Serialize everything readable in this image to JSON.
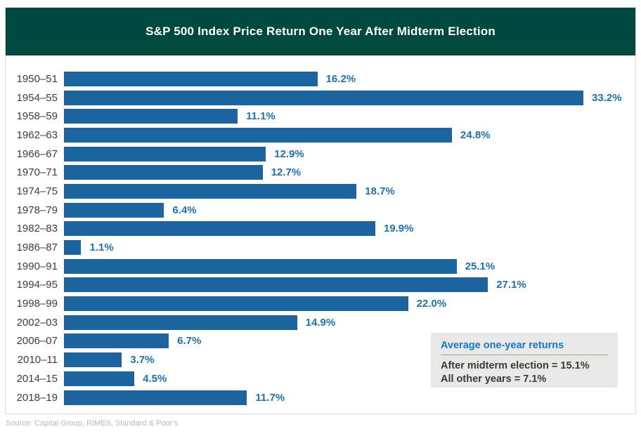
{
  "header": {
    "title": "S&P 500 Index Price Return One Year After Midterm Election"
  },
  "chart_data": {
    "type": "bar",
    "orientation": "horizontal",
    "title": "S&P 500 Index Price Return One Year After Midterm Election",
    "categories": [
      "1950–51",
      "1954–55",
      "1958–59",
      "1962–63",
      "1966–67",
      "1970–71",
      "1974–75",
      "1978–79",
      "1982–83",
      "1986–87",
      "1990–91",
      "1994–95",
      "1998–99",
      "2002–03",
      "2006–07",
      "2010–11",
      "2014–15",
      "2018–19"
    ],
    "values": [
      16.2,
      33.2,
      11.1,
      24.8,
      12.9,
      12.7,
      18.7,
      6.4,
      19.9,
      1.1,
      25.1,
      27.1,
      22.0,
      14.9,
      6.7,
      3.7,
      4.5,
      11.7
    ],
    "value_labels": [
      "16.2%",
      "33.2%",
      "11.1%",
      "24.8%",
      "12.9%",
      "12.7%",
      "18.7%",
      "6.4%",
      "19.9%",
      "1.1%",
      "25.1%",
      "27.1%",
      "22.0%",
      "14.9%",
      "6.7%",
      "3.7%",
      "4.5%",
      "11.7%"
    ],
    "xlabel": "",
    "ylabel": "",
    "xlim": [
      0,
      33.2
    ],
    "grid": false,
    "legend_position": "none",
    "annotation_box": {
      "title": "Average one-year returns",
      "lines": [
        "After midterm election = 15.1%",
        "All other years = 7.1%"
      ]
    }
  },
  "legend": {
    "title": "Average one-year returns",
    "line1": "After midterm election = 15.1%",
    "line2": "All other years = 7.1%"
  },
  "footer": {
    "source": "Source: Capital Group, RIMES, Standard & Poor's"
  },
  "colors": {
    "header_bg": "#00493f",
    "bar": "#1c649f",
    "value_label": "#1e72b2",
    "year_label": "#3d3d3d",
    "legend_bg": "#e8e8e6",
    "legend_title": "#1878c2",
    "legend_text": "#3a3a3a",
    "border": "#d8d8d8",
    "source": "#b9b9b9"
  }
}
